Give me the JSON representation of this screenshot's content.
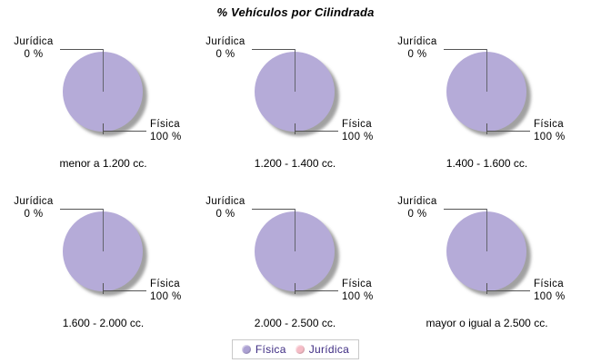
{
  "title": "% Vehículos por Cilindrada",
  "pie_labels": {
    "minor_name": "Jurídica",
    "minor_value": "0 %",
    "major_name": "Física",
    "major_value": "100 %"
  },
  "legend": {
    "items": [
      {
        "label": "Física",
        "color": "#aca1d3"
      },
      {
        "label": "Jurídica",
        "color": "#f5bcc6"
      }
    ]
  },
  "colors": {
    "pie_fill": "#b5abd8",
    "pie_shadow": "#9b9b9b",
    "leader_line": "#555555",
    "legend_text": "#3d2b82",
    "legend_border": "#c9c9c9",
    "background": "#ffffff",
    "text": "#000000"
  },
  "chart_data": {
    "type": "pie",
    "title": "% Vehículos por Cilindrada",
    "layout": "2x3 grid of small-multiple pies, legend at bottom",
    "categories": [
      "menor a 1.200 cc.",
      "1.200 - 1.400 cc.",
      "1.400 - 1.600 cc.",
      "1.600 - 2.000 cc.",
      "2.000 - 2.500 cc.",
      "mayor o igual a 2.500 cc."
    ],
    "series": [
      {
        "name": "Física",
        "color": "#b5abd8",
        "values": [
          100,
          100,
          100,
          100,
          100,
          100
        ]
      },
      {
        "name": "Jurídica",
        "color": "#f5bcc6",
        "values": [
          0,
          0,
          0,
          0,
          0,
          0
        ]
      }
    ],
    "unit": "%",
    "legend_position": "bottom"
  }
}
